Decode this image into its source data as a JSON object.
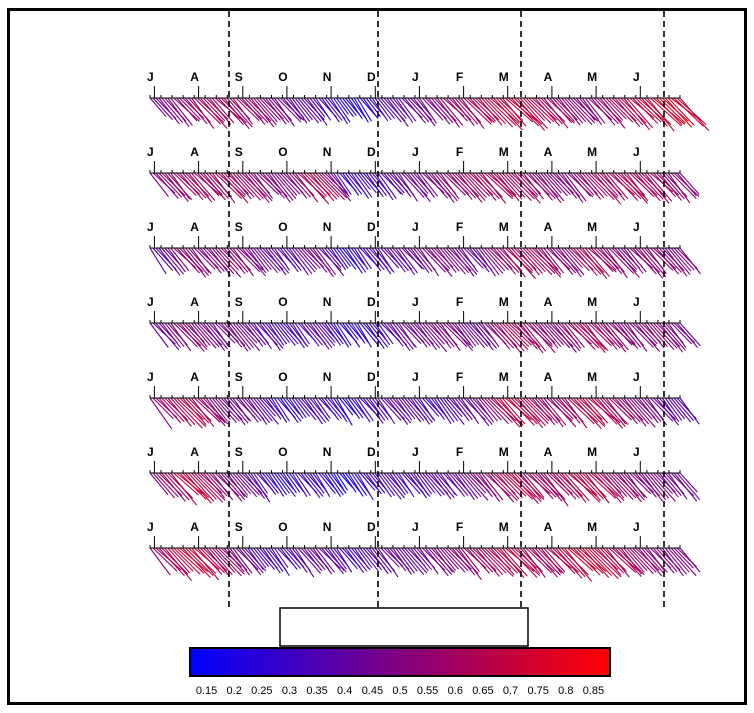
{
  "chart_data": {
    "type": "stick_plot",
    "panels": [
      {
        "month_labels": [
          "J",
          "A",
          "S",
          "O",
          "N",
          "D",
          "J",
          "F",
          "M",
          "A",
          "M",
          "J"
        ],
        "months": 12,
        "values": [
          0.45,
          0.5,
          0.55,
          0.6,
          0.62,
          0.6,
          0.58,
          0.55,
          0.5,
          0.45,
          0.4,
          0.35,
          0.3,
          0.2,
          0.18,
          0.3,
          0.4,
          0.42,
          0.45,
          0.5,
          0.55,
          0.6,
          0.65,
          0.7,
          0.72,
          0.7,
          0.65,
          0.6,
          0.55,
          0.5,
          0.55,
          0.6,
          0.65,
          0.7,
          0.75,
          0.78,
          0.7
        ]
      },
      {
        "month_labels": [
          "J",
          "A",
          "S",
          "O",
          "N",
          "D",
          "J",
          "F",
          "M",
          "A",
          "M",
          "J"
        ],
        "months": 12,
        "values": [
          0.5,
          0.55,
          0.6,
          0.58,
          0.6,
          0.62,
          0.58,
          0.55,
          0.5,
          0.48,
          0.6,
          0.7,
          0.5,
          0.25,
          0.3,
          0.35,
          0.4,
          0.45,
          0.45,
          0.5,
          0.55,
          0.6,
          0.62,
          0.65,
          0.62,
          0.6,
          0.55,
          0.5,
          0.5,
          0.55,
          0.6,
          0.62,
          0.65,
          0.62,
          0.6,
          0.55,
          0.5
        ]
      },
      {
        "month_labels": [
          "J",
          "A",
          "S",
          "O",
          "N",
          "D",
          "J",
          "F",
          "M",
          "A",
          "M",
          "J"
        ],
        "months": 12,
        "values": [
          0.35,
          0.45,
          0.55,
          0.5,
          0.5,
          0.55,
          0.5,
          0.45,
          0.4,
          0.35,
          0.45,
          0.5,
          0.35,
          0.2,
          0.3,
          0.35,
          0.4,
          0.4,
          0.45,
          0.5,
          0.5,
          0.45,
          0.4,
          0.55,
          0.6,
          0.62,
          0.6,
          0.55,
          0.5,
          0.65,
          0.6,
          0.55,
          0.5,
          0.55,
          0.55,
          0.5,
          0.5
        ]
      },
      {
        "month_labels": [
          "J",
          "A",
          "S",
          "O",
          "N",
          "D",
          "J",
          "F",
          "M",
          "A",
          "M",
          "J"
        ],
        "months": 12,
        "values": [
          0.4,
          0.5,
          0.55,
          0.5,
          0.45,
          0.5,
          0.45,
          0.4,
          0.35,
          0.3,
          0.35,
          0.4,
          0.3,
          0.2,
          0.25,
          0.3,
          0.4,
          0.45,
          0.45,
          0.5,
          0.5,
          0.45,
          0.4,
          0.55,
          0.65,
          0.6,
          0.55,
          0.5,
          0.55,
          0.65,
          0.6,
          0.55,
          0.5,
          0.5,
          0.55,
          0.5,
          0.45
        ]
      },
      {
        "month_labels": [
          "J",
          "A",
          "S",
          "O",
          "N",
          "D",
          "J",
          "F",
          "M",
          "A",
          "M",
          "J"
        ],
        "months": 12,
        "values": [
          0.5,
          0.6,
          0.7,
          0.6,
          0.5,
          0.45,
          0.45,
          0.4,
          0.3,
          0.25,
          0.3,
          0.35,
          0.3,
          0.2,
          0.3,
          0.35,
          0.4,
          0.4,
          0.35,
          0.3,
          0.35,
          0.4,
          0.45,
          0.6,
          0.7,
          0.65,
          0.6,
          0.55,
          0.6,
          0.7,
          0.65,
          0.6,
          0.55,
          0.5,
          0.45,
          0.4,
          0.35
        ]
      },
      {
        "month_labels": [
          "J",
          "A",
          "S",
          "O",
          "N",
          "D",
          "J",
          "F",
          "M",
          "A",
          "M",
          "J"
        ],
        "months": 12,
        "values": [
          0.5,
          0.6,
          0.75,
          0.65,
          0.55,
          0.5,
          0.45,
          0.35,
          0.25,
          0.2,
          0.3,
          0.3,
          0.2,
          0.15,
          0.25,
          0.3,
          0.35,
          0.3,
          0.35,
          0.4,
          0.4,
          0.45,
          0.5,
          0.6,
          0.7,
          0.65,
          0.6,
          0.6,
          0.65,
          0.7,
          0.65,
          0.6,
          0.55,
          0.5,
          0.5,
          0.45,
          0.45
        ]
      },
      {
        "month_labels": [
          "J",
          "A",
          "S",
          "O",
          "N",
          "D",
          "J",
          "F",
          "M",
          "A",
          "M",
          "J"
        ],
        "months": 12,
        "values": [
          0.55,
          0.65,
          0.75,
          0.7,
          0.6,
          0.55,
          0.45,
          0.35,
          0.3,
          0.35,
          0.4,
          0.45,
          0.4,
          0.3,
          0.35,
          0.4,
          0.45,
          0.4,
          0.45,
          0.5,
          0.5,
          0.55,
          0.6,
          0.65,
          0.7,
          0.65,
          0.6,
          0.65,
          0.7,
          0.75,
          0.7,
          0.65,
          0.6,
          0.55,
          0.5,
          0.5,
          0.5
        ]
      }
    ],
    "colorbar": {
      "ticks": [
        "0.15",
        "0.2",
        "0.25",
        "0.3",
        "0.35",
        "0.4",
        "0.45",
        "0.5",
        "0.55",
        "0.6",
        "0.65",
        "0.7",
        "0.75",
        "0.8",
        "0.85"
      ],
      "min": 0.12,
      "max": 0.88,
      "colors": [
        "#0000ff",
        "#ff0000"
      ]
    },
    "grid": false,
    "legend_box": ""
  }
}
